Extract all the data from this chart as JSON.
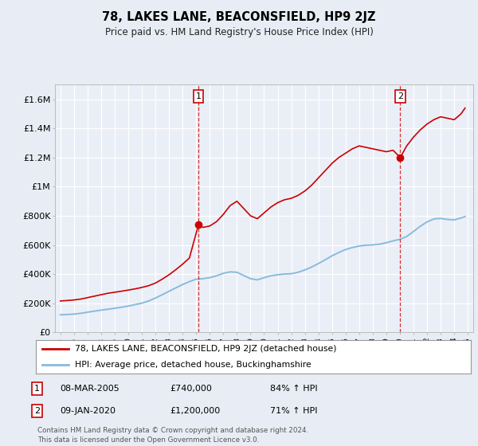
{
  "title": "78, LAKES LANE, BEACONSFIELD, HP9 2JZ",
  "subtitle": "Price paid vs. HM Land Registry's House Price Index (HPI)",
  "bg_color": "#e8edf5",
  "plot_bg_color": "#eaeff7",
  "grid_color": "#ffffff",
  "red_line_color": "#cc0000",
  "blue_line_color": "#88bbdd",
  "ylim": [
    0,
    1700000
  ],
  "yticks": [
    0,
    200000,
    400000,
    600000,
    800000,
    1000000,
    1200000,
    1400000,
    1600000
  ],
  "ytick_labels": [
    "£0",
    "£200K",
    "£400K",
    "£600K",
    "£800K",
    "£1M",
    "£1.2M",
    "£1.4M",
    "£1.6M"
  ],
  "x_start_year": 1995,
  "x_end_year": 2025,
  "annotation1": {
    "label": "1",
    "year": 2005.17,
    "value": 740000
  },
  "annotation2": {
    "label": "2",
    "year": 2020.03,
    "value": 1200000
  },
  "legend_line1": "78, LAKES LANE, BEACONSFIELD, HP9 2JZ (detached house)",
  "legend_line2": "HPI: Average price, detached house, Buckinghamshire",
  "table_row1": [
    "1",
    "08-MAR-2005",
    "£740,000",
    "84% ↑ HPI"
  ],
  "table_row2": [
    "2",
    "09-JAN-2020",
    "£1,200,000",
    "71% ↑ HPI"
  ],
  "footer": "Contains HM Land Registry data © Crown copyright and database right 2024.\nThis data is licensed under the Open Government Licence v3.0.",
  "red_data": [
    [
      1995.0,
      215000
    ],
    [
      1995.5,
      218000
    ],
    [
      1996.0,
      222000
    ],
    [
      1996.5,
      228000
    ],
    [
      1997.0,
      238000
    ],
    [
      1997.5,
      248000
    ],
    [
      1998.0,
      258000
    ],
    [
      1998.5,
      268000
    ],
    [
      1999.0,
      275000
    ],
    [
      1999.5,
      282000
    ],
    [
      2000.0,
      290000
    ],
    [
      2000.5,
      298000
    ],
    [
      2001.0,
      308000
    ],
    [
      2001.5,
      320000
    ],
    [
      2002.0,
      338000
    ],
    [
      2002.5,
      365000
    ],
    [
      2003.0,
      395000
    ],
    [
      2003.5,
      430000
    ],
    [
      2004.0,
      468000
    ],
    [
      2004.5,
      510000
    ],
    [
      2005.17,
      740000
    ],
    [
      2005.5,
      720000
    ],
    [
      2006.0,
      730000
    ],
    [
      2006.5,
      760000
    ],
    [
      2007.0,
      810000
    ],
    [
      2007.5,
      870000
    ],
    [
      2008.0,
      900000
    ],
    [
      2008.5,
      850000
    ],
    [
      2009.0,
      800000
    ],
    [
      2009.5,
      780000
    ],
    [
      2010.0,
      820000
    ],
    [
      2010.5,
      860000
    ],
    [
      2011.0,
      890000
    ],
    [
      2011.5,
      910000
    ],
    [
      2012.0,
      920000
    ],
    [
      2012.5,
      940000
    ],
    [
      2013.0,
      970000
    ],
    [
      2013.5,
      1010000
    ],
    [
      2014.0,
      1060000
    ],
    [
      2014.5,
      1110000
    ],
    [
      2015.0,
      1160000
    ],
    [
      2015.5,
      1200000
    ],
    [
      2016.0,
      1230000
    ],
    [
      2016.5,
      1260000
    ],
    [
      2017.0,
      1280000
    ],
    [
      2017.5,
      1270000
    ],
    [
      2018.0,
      1260000
    ],
    [
      2018.5,
      1250000
    ],
    [
      2019.0,
      1240000
    ],
    [
      2019.5,
      1250000
    ],
    [
      2020.03,
      1200000
    ],
    [
      2020.5,
      1280000
    ],
    [
      2021.0,
      1340000
    ],
    [
      2021.5,
      1390000
    ],
    [
      2022.0,
      1430000
    ],
    [
      2022.5,
      1460000
    ],
    [
      2023.0,
      1480000
    ],
    [
      2023.5,
      1470000
    ],
    [
      2024.0,
      1460000
    ],
    [
      2024.5,
      1500000
    ],
    [
      2024.8,
      1540000
    ]
  ],
  "blue_data": [
    [
      1995.0,
      120000
    ],
    [
      1995.5,
      122000
    ],
    [
      1996.0,
      125000
    ],
    [
      1996.5,
      130000
    ],
    [
      1997.0,
      138000
    ],
    [
      1997.5,
      145000
    ],
    [
      1998.0,
      152000
    ],
    [
      1998.5,
      158000
    ],
    [
      1999.0,
      165000
    ],
    [
      1999.5,
      172000
    ],
    [
      2000.0,
      180000
    ],
    [
      2000.5,
      190000
    ],
    [
      2001.0,
      200000
    ],
    [
      2001.5,
      215000
    ],
    [
      2002.0,
      235000
    ],
    [
      2002.5,
      258000
    ],
    [
      2003.0,
      282000
    ],
    [
      2003.5,
      305000
    ],
    [
      2004.0,
      328000
    ],
    [
      2004.5,
      348000
    ],
    [
      2005.0,
      365000
    ],
    [
      2005.5,
      368000
    ],
    [
      2006.0,
      375000
    ],
    [
      2006.5,
      388000
    ],
    [
      2007.0,
      405000
    ],
    [
      2007.5,
      415000
    ],
    [
      2008.0,
      412000
    ],
    [
      2008.5,
      390000
    ],
    [
      2009.0,
      368000
    ],
    [
      2009.5,
      360000
    ],
    [
      2010.0,
      375000
    ],
    [
      2010.5,
      388000
    ],
    [
      2011.0,
      395000
    ],
    [
      2011.5,
      400000
    ],
    [
      2012.0,
      402000
    ],
    [
      2012.5,
      412000
    ],
    [
      2013.0,
      428000
    ],
    [
      2013.5,
      448000
    ],
    [
      2014.0,
      472000
    ],
    [
      2014.5,
      498000
    ],
    [
      2015.0,
      525000
    ],
    [
      2015.5,
      548000
    ],
    [
      2016.0,
      568000
    ],
    [
      2016.5,
      582000
    ],
    [
      2017.0,
      592000
    ],
    [
      2017.5,
      598000
    ],
    [
      2018.0,
      600000
    ],
    [
      2018.5,
      605000
    ],
    [
      2019.0,
      615000
    ],
    [
      2019.5,
      628000
    ],
    [
      2020.0,
      638000
    ],
    [
      2020.5,
      658000
    ],
    [
      2021.0,
      692000
    ],
    [
      2021.5,
      728000
    ],
    [
      2022.0,
      758000
    ],
    [
      2022.5,
      778000
    ],
    [
      2023.0,
      782000
    ],
    [
      2023.5,
      775000
    ],
    [
      2024.0,
      772000
    ],
    [
      2024.5,
      785000
    ],
    [
      2024.8,
      795000
    ]
  ]
}
